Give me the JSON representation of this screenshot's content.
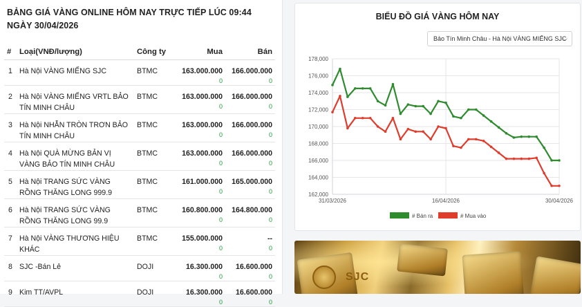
{
  "page": {
    "title": "BẢNG GIÁ VÀNG ONLINE HÔM NAY TRỰC TIẾP LÚC 09:44 NGÀY 30/04/2026"
  },
  "table": {
    "headers": {
      "idx": "#",
      "type": "Loại(VNĐ/lượng)",
      "company": "Công ty",
      "buy": "Mua",
      "sell": "Bán"
    },
    "rows": [
      {
        "idx": "1",
        "type": "Hà Nội VÀNG MIẾNG SJC",
        "company": "BTMC",
        "buy": "163.000.000",
        "buy_change": "0",
        "sell": "166.000.000",
        "sell_change": "0"
      },
      {
        "idx": "2",
        "type": "Hà Nội VÀNG MIẾNG VRTL BẢO TÍN MINH CHÂU",
        "company": "BTMC",
        "buy": "163.000.000",
        "buy_change": "0",
        "sell": "166.000.000",
        "sell_change": "0"
      },
      {
        "idx": "3",
        "type": "Hà Nội NHẪN TRÒN TRƠN BẢO TÍN MINH CHÂU",
        "company": "BTMC",
        "buy": "163.000.000",
        "buy_change": "0",
        "sell": "166.000.000",
        "sell_change": "0"
      },
      {
        "idx": "4",
        "type": "Hà Nội QUÀ MỪNG BẢN VỊ VÀNG BẢO TÍN MINH CHÂU",
        "company": "BTMC",
        "buy": "163.000.000",
        "buy_change": "0",
        "sell": "166.000.000",
        "sell_change": "0"
      },
      {
        "idx": "5",
        "type": "Hà Nội TRANG SỨC VÀNG RỒNG THĂNG LONG 999.9",
        "company": "BTMC",
        "buy": "161.000.000",
        "buy_change": "0",
        "sell": "165.000.000",
        "sell_change": "0"
      },
      {
        "idx": "6",
        "type": "Hà Nội TRANG SỨC VÀNG RỒNG THĂNG LONG 99.9",
        "company": "BTMC",
        "buy": "160.800.000",
        "buy_change": "0",
        "sell": "164.800.000",
        "sell_change": "0"
      },
      {
        "idx": "7",
        "type": "Hà Nội VÀNG THƯƠNG HIỆU KHÁC",
        "company": "BTMC",
        "buy": "155.000.000",
        "buy_change": "0",
        "sell": "--",
        "sell_change": "0"
      },
      {
        "idx": "8",
        "type": "SJC -Bán Lẻ",
        "company": "DOJI",
        "buy": "16.300.000",
        "buy_change": "0",
        "sell": "16.600.000",
        "sell_change": "0"
      },
      {
        "idx": "9",
        "type": "Kim TT/AVPL",
        "company": "DOJI",
        "buy": "16.300.000",
        "buy_change": "0",
        "sell": "16.600.000",
        "sell_change": "0"
      }
    ]
  },
  "chart_panel": {
    "title": "BIỂU ĐỒ GIÁ VÀNG HÔM NAY",
    "select_value": "Bảo Tín Minh Châu - Hà Nội VÀNG MIẾNG SJC",
    "chevron_icon": "chevron-down-icon"
  },
  "chart_data": {
    "type": "line",
    "title": "",
    "x_tick_labels": [
      "31/03/2026",
      "16/04/2026",
      "30/04/2026"
    ],
    "ylim": [
      162000,
      178000
    ],
    "y_ticks": [
      162000,
      164000,
      166000,
      168000,
      170000,
      172000,
      174000,
      176000,
      178000
    ],
    "y_tick_labels": [
      "162,000",
      "164,000",
      "166,000",
      "168,000",
      "170,000",
      "172,000",
      "174,000",
      "176,000",
      "178,000"
    ],
    "grid": true,
    "legend_position": "bottom",
    "series": [
      {
        "name": "# Bán ra",
        "color": "#2e8b2e",
        "values": [
          174900,
          176800,
          173500,
          174500,
          174500,
          174500,
          173000,
          172500,
          175000,
          171500,
          172600,
          172400,
          172400,
          171500,
          173000,
          172800,
          171200,
          171000,
          172000,
          172000,
          171300,
          170600,
          169900,
          169200,
          168700,
          168800,
          168800,
          168800,
          167500,
          166000,
          166000
        ]
      },
      {
        "name": "# Mua vào",
        "color": "#e03c2c",
        "values": [
          171700,
          173600,
          169800,
          171000,
          171000,
          171000,
          170000,
          169400,
          171000,
          168500,
          169700,
          169400,
          169400,
          168500,
          170000,
          169800,
          167700,
          167500,
          168500,
          168500,
          168300,
          167600,
          166900,
          166200,
          166200,
          166200,
          166200,
          166300,
          164500,
          163000,
          163000
        ]
      }
    ]
  },
  "photo": {
    "description_text": "SJC"
  }
}
